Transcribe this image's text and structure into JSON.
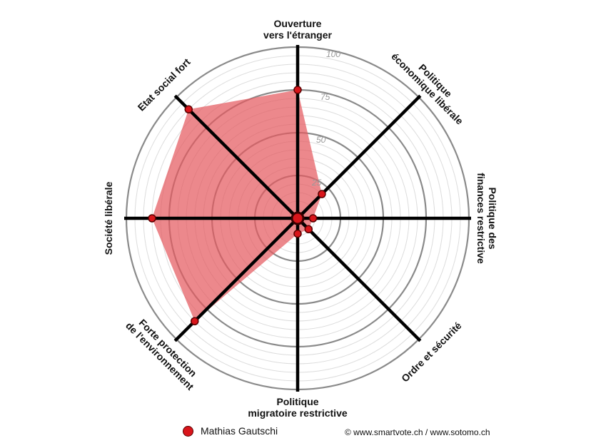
{
  "chart_data": {
    "type": "radar",
    "axes": [
      {
        "label": [
          "Ouverture",
          "vers l'étranger"
        ]
      },
      {
        "label": [
          "Politique",
          "économique libérale"
        ]
      },
      {
        "label": [
          "Politique des",
          "finances restrictive"
        ]
      },
      {
        "label": [
          "Ordre et sécurité"
        ]
      },
      {
        "label": [
          "Politique",
          "migratoire restrictive"
        ]
      },
      {
        "label": [
          "Forte protection",
          "de l'environnement"
        ]
      },
      {
        "label": [
          "Société libérale"
        ]
      },
      {
        "label": [
          "Etat social fort"
        ]
      }
    ],
    "rlim": [
      0,
      100
    ],
    "ticks": [
      25,
      50,
      75,
      100
    ],
    "series": [
      {
        "name": "Mathias Gautschi",
        "values": [
          75,
          20,
          9,
          9,
          9,
          85,
          85,
          90
        ],
        "color": "#d9151b",
        "fill": "#e55a5f"
      }
    ]
  },
  "legend": {
    "name": "Mathias Gautschi"
  },
  "credit": "© www.smartvote.ch / www.sotomo.ch"
}
